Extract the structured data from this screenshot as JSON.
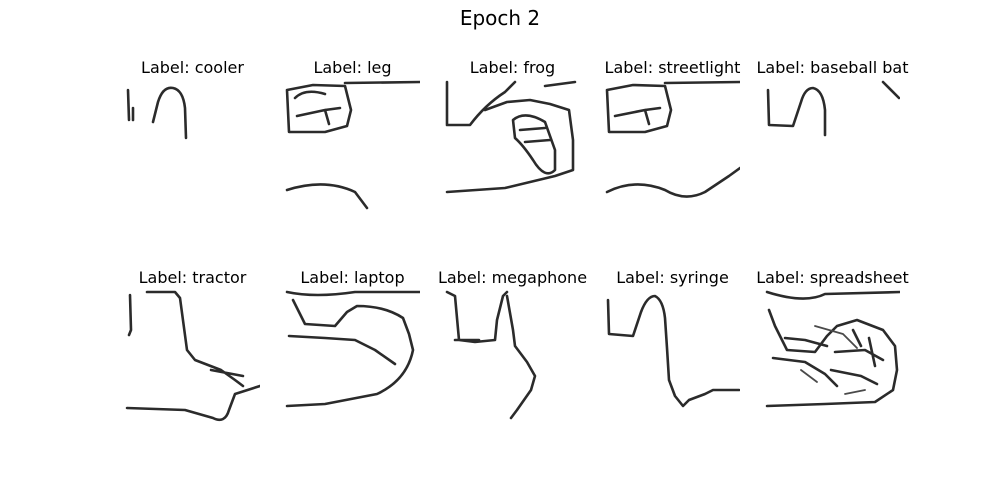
{
  "figure": {
    "title": "Epoch 2",
    "panels": [
      {
        "label": "Label: cooler"
      },
      {
        "label": "Label: leg"
      },
      {
        "label": "Label: frog"
      },
      {
        "label": "Label: streetlight"
      },
      {
        "label": "Label: baseball bat"
      },
      {
        "label": "Label: tractor"
      },
      {
        "label": "Label: laptop"
      },
      {
        "label": "Label: megaphone"
      },
      {
        "label": "Label: syringe"
      },
      {
        "label": "Label: spreadsheet"
      }
    ]
  }
}
